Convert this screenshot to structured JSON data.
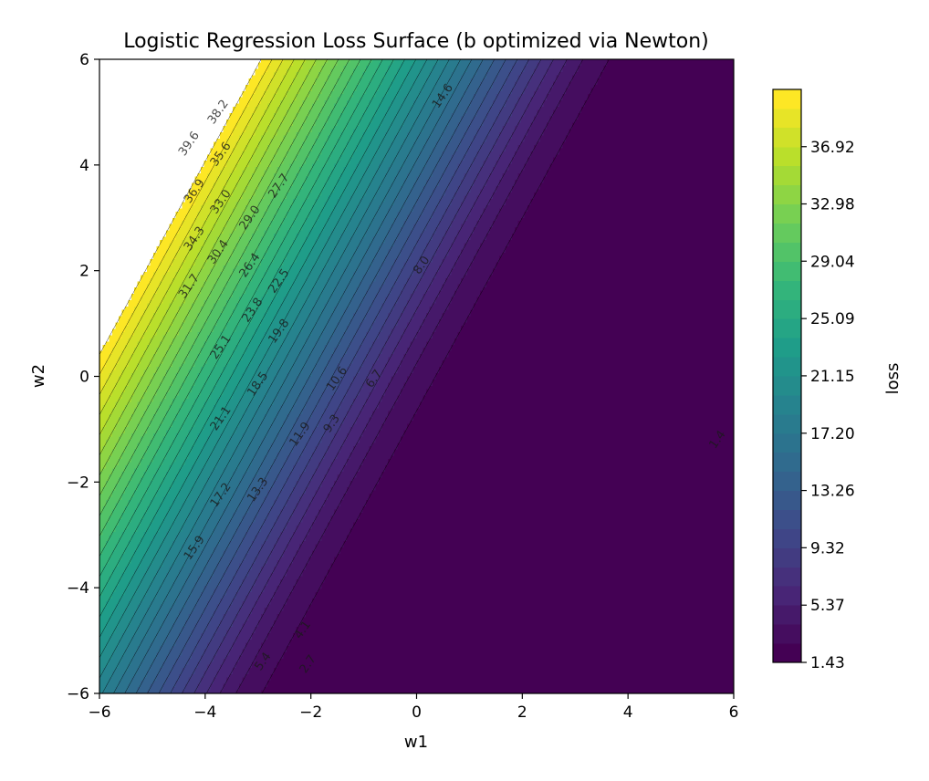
{
  "chart_data": {
    "type": "contour",
    "title": "Logistic Regression Loss Surface (b optimized via Newton)",
    "xlabel": "w1",
    "ylabel": "w2",
    "xlim": [
      -6,
      6
    ],
    "ylim": [
      -6,
      6
    ],
    "x_ticks": [
      "−6",
      "−4",
      "−2",
      "0",
      "2",
      "4",
      "6"
    ],
    "y_ticks": [
      "−6",
      "−4",
      "−2",
      "0",
      "2",
      "4",
      "6"
    ],
    "x_tick_values": [
      -6,
      -4,
      -2,
      0,
      2,
      4,
      6
    ],
    "y_tick_values": [
      -6,
      -4,
      -2,
      0,
      2,
      4,
      6
    ],
    "levels": [
      1.43,
      2.74,
      4.06,
      5.37,
      6.69,
      8.0,
      9.32,
      10.63,
      11.94,
      13.26,
      14.57,
      15.89,
      17.2,
      18.52,
      19.83,
      21.15,
      22.46,
      23.78,
      25.09,
      26.4,
      27.72,
      29.03,
      30.35,
      31.66,
      32.98,
      34.29,
      35.61,
      36.92,
      38.24,
      39.55,
      40.86
    ],
    "min_level_label": "1.4",
    "contour_labels": [
      {
        "text": "39.6",
        "x": -4.3,
        "y": 4.4,
        "angle": -55
      },
      {
        "text": "38.2",
        "x": -3.75,
        "y": 5.0,
        "angle": -55
      },
      {
        "text": "36.9",
        "x": -4.2,
        "y": 3.5,
        "angle": -55
      },
      {
        "text": "35.6",
        "x": -3.7,
        "y": 4.2,
        "angle": -55
      },
      {
        "text": "34.3",
        "x": -4.2,
        "y": 2.6,
        "angle": -55
      },
      {
        "text": "33.0",
        "x": -3.7,
        "y": 3.3,
        "angle": -55
      },
      {
        "text": "31.7",
        "x": -4.3,
        "y": 1.7,
        "angle": -55
      },
      {
        "text": "30.4",
        "x": -3.75,
        "y": 2.35,
        "angle": -55
      },
      {
        "text": "29.0",
        "x": -3.15,
        "y": 3.0,
        "angle": -55
      },
      {
        "text": "27.7",
        "x": -2.6,
        "y": 3.6,
        "angle": -55
      },
      {
        "text": "26.4",
        "x": -3.15,
        "y": 2.1,
        "angle": -55
      },
      {
        "text": "25.1",
        "x": -3.7,
        "y": 0.55,
        "angle": -55
      },
      {
        "text": "23.8",
        "x": -3.1,
        "y": 1.25,
        "angle": -55
      },
      {
        "text": "22.5",
        "x": -2.6,
        "y": 1.8,
        "angle": -55
      },
      {
        "text": "21.1",
        "x": -3.7,
        "y": -0.8,
        "angle": -55
      },
      {
        "text": "19.8",
        "x": -2.6,
        "y": 0.85,
        "angle": -55
      },
      {
        "text": "18.5",
        "x": -3.0,
        "y": -0.15,
        "angle": -55
      },
      {
        "text": "17.2",
        "x": -3.7,
        "y": -2.25,
        "angle": -55
      },
      {
        "text": "15.9",
        "x": -4.2,
        "y": -3.25,
        "angle": -55
      },
      {
        "text": "14.6",
        "x": 0.5,
        "y": 5.3,
        "angle": -55
      },
      {
        "text": "13.3",
        "x": -3.0,
        "y": -2.15,
        "angle": -55
      },
      {
        "text": "11.9",
        "x": -2.2,
        "y": -1.1,
        "angle": -55
      },
      {
        "text": "10.6",
        "x": -1.5,
        "y": -0.05,
        "angle": -55
      },
      {
        "text": "9.3",
        "x": -1.6,
        "y": -0.9,
        "angle": -55
      },
      {
        "text": "8.0",
        "x": 0.1,
        "y": 2.1,
        "angle": -55
      },
      {
        "text": "6.7",
        "x": -0.8,
        "y": -0.05,
        "angle": -55
      },
      {
        "text": "5.4",
        "x": -2.9,
        "y": -5.4,
        "angle": -55
      },
      {
        "text": "4.1",
        "x": -2.15,
        "y": -4.8,
        "angle": -55
      },
      {
        "text": "2.7",
        "x": -2.05,
        "y": -5.45,
        "angle": -55
      },
      {
        "text": "1.4",
        "x": 5.7,
        "y": -1.2,
        "angle": -55
      }
    ],
    "colorbar": {
      "label": "loss",
      "ticks": [
        "36.92",
        "32.98",
        "29.04",
        "25.09",
        "21.15",
        "17.20",
        "13.26",
        "9.32",
        "5.37",
        "1.43"
      ],
      "tick_values": [
        36.92,
        32.98,
        29.04,
        25.09,
        21.15,
        17.2,
        13.26,
        9.32,
        5.37,
        1.43
      ],
      "vmin": 1.43,
      "vmax": 40.86
    },
    "colormap": [
      "#440154",
      "#482878",
      "#3e4a89",
      "#31688e",
      "#26828e",
      "#1f9e89",
      "#35b779",
      "#6ece58",
      "#b5de2b",
      "#fde725"
    ],
    "grid": false
  }
}
